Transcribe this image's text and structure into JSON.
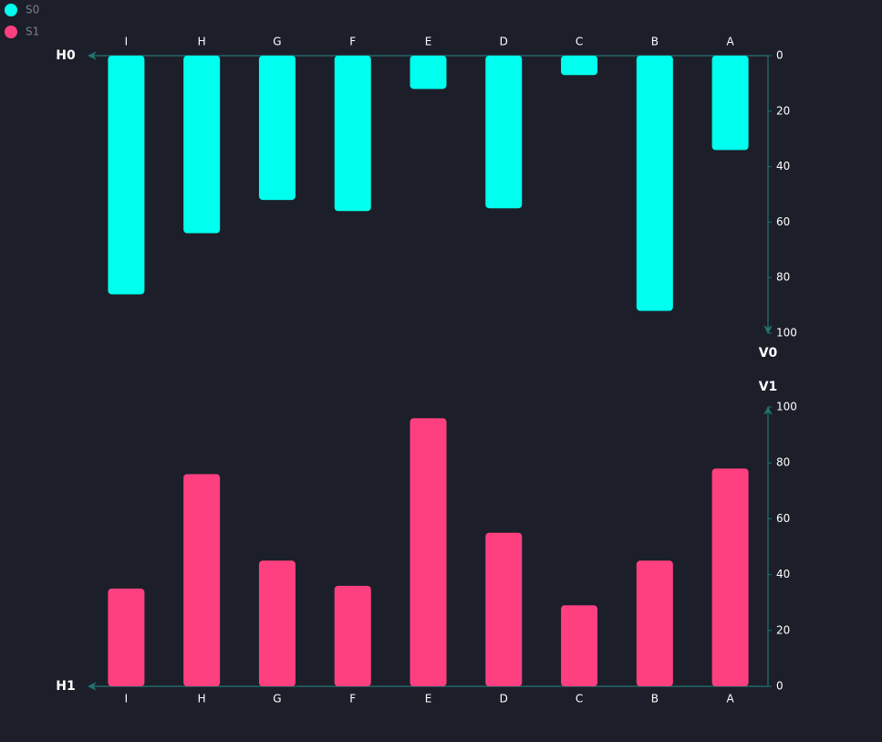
{
  "chart_data": [
    {
      "type": "bar",
      "x_label": "H0",
      "y_label": "V0",
      "x_axis_position": "top",
      "y_axis_position": "right",
      "y_inverted": true,
      "categories": [
        "I",
        "H",
        "G",
        "F",
        "E",
        "D",
        "C",
        "B",
        "A"
      ],
      "series": [
        {
          "name": "S0",
          "color": "#00ffee",
          "values": [
            86,
            64,
            52,
            56,
            12,
            55,
            7,
            92,
            34
          ]
        }
      ],
      "ylim": [
        0,
        100
      ],
      "yticks": [
        0,
        20,
        40,
        60,
        80,
        100
      ]
    },
    {
      "type": "bar",
      "x_label": "H1",
      "y_label": "V1",
      "x_axis_position": "bottom",
      "y_axis_position": "right",
      "y_inverted": false,
      "categories": [
        "I",
        "H",
        "G",
        "F",
        "E",
        "D",
        "C",
        "B",
        "A"
      ],
      "series": [
        {
          "name": "S1",
          "color": "#ff4080",
          "values": [
            35,
            76,
            45,
            36,
            96,
            55,
            29,
            45,
            78
          ]
        }
      ],
      "ylim": [
        0,
        100
      ],
      "yticks": [
        0,
        20,
        40,
        60,
        80,
        100
      ]
    }
  ]
}
